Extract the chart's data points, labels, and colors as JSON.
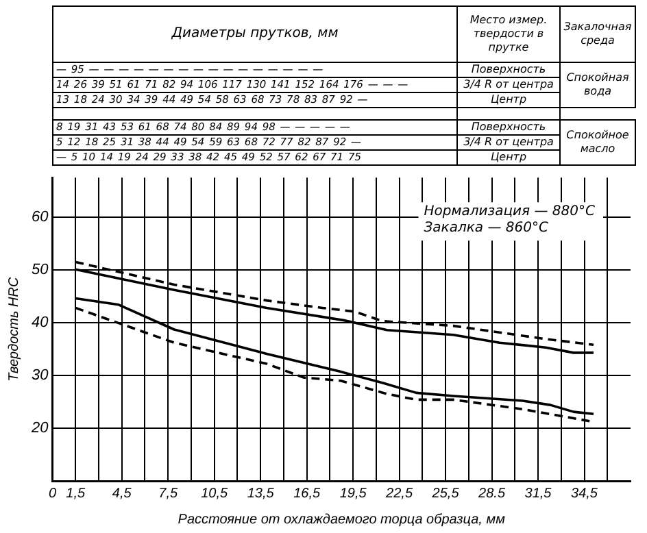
{
  "chart_data": {
    "type": "line",
    "xlabel": "Расстояние от охлаждаемого торца образца, мм",
    "ylabel": "Твердость HRC",
    "xlim": [
      0,
      37.5
    ],
    "ylim": [
      10,
      67.5
    ],
    "xticks": [
      0,
      {
        "value": 1.5,
        "label": "1,5"
      },
      {
        "value": 3,
        "label": null
      },
      {
        "value": 4.5,
        "label": "4,5"
      },
      {
        "value": 6,
        "label": null
      },
      {
        "value": 7.5,
        "label": "7,5"
      },
      {
        "value": 9,
        "label": null
      },
      {
        "value": 10.5,
        "label": "10,5"
      },
      {
        "value": 12,
        "label": null
      },
      {
        "value": 13.5,
        "label": "13,5"
      },
      {
        "value": 15,
        "label": null
      },
      {
        "value": 16.5,
        "label": "16,5"
      },
      {
        "value": 18,
        "label": null
      },
      {
        "value": 19.5,
        "label": "19,5"
      },
      {
        "value": 21,
        "label": null
      },
      {
        "value": 22.5,
        "label": "22,5"
      },
      {
        "value": 24,
        "label": null
      },
      {
        "value": 25.5,
        "label": "25,5"
      },
      {
        "value": 27,
        "label": null
      },
      {
        "value": 28.5,
        "label": "28.5"
      },
      {
        "value": 30,
        "label": null
      },
      {
        "value": 31.5,
        "label": "31,5"
      },
      {
        "value": 33,
        "label": null
      },
      {
        "value": 34.5,
        "label": "34,5"
      },
      {
        "value": 36,
        "label": null
      }
    ],
    "yticks": [
      20,
      30,
      40,
      50,
      60
    ],
    "grid": true,
    "series": [
      {
        "color": "#000000",
        "line_style": "solid",
        "x": [
          1.5,
          7.9,
          13.9,
          19.0,
          21.7,
          26.0,
          29.0,
          32.0,
          33.8,
          35.1
        ],
        "values": [
          50.1,
          46.2,
          42.8,
          40.4,
          38.6,
          37.7,
          36.2,
          35.3,
          34.3,
          34.3
        ]
      },
      {
        "color": "#000000",
        "line_style": "dashed",
        "x": [
          1.5,
          7.9,
          13.9,
          17.5,
          19.6,
          21.4,
          26.0,
          32.0,
          35.1
        ],
        "values": [
          51.5,
          47.2,
          44.2,
          42.8,
          42.1,
          40.3,
          39.4,
          36.9,
          35.8
        ]
      },
      {
        "color": "#000000",
        "line_style": "solid",
        "x": [
          1.5,
          4.3,
          7.9,
          13.9,
          18.7,
          21.4,
          23.6,
          26.0,
          30.5,
          32.3,
          33.8,
          35.1
        ],
        "values": [
          44.6,
          43.4,
          38.7,
          34.1,
          30.7,
          28.6,
          26.7,
          26.1,
          25.2,
          24.4,
          23.1,
          22.7
        ]
      },
      {
        "color": "#000000",
        "line_style": "dashed",
        "x": [
          1.5,
          7.9,
          13.9,
          16.3,
          18.7,
          21.7,
          23.6,
          26.0,
          30.5,
          35.1
        ],
        "values": [
          42.8,
          36.2,
          32.2,
          29.6,
          29.0,
          26.5,
          25.4,
          25.4,
          23.6,
          21.2
        ]
      }
    ],
    "annotations": [
      "Диаметры прутков, мм",
      "Место измер. твердости в прутке",
      "Закалочная среда",
      "— 95 — — — — — — — — — — — — — — — —",
      "14 26 39 51 61 71 82 94 106 117 130 141 152 164 176 — — —",
      "13 18 24 30 34 39 44 49 54 58 63 68 73 78 83 87 92 —",
      "Поверхность",
      "3/4 R от центра",
      "Центр",
      "Спокойная вода",
      "8 19 31 43 53 61 68 74 80 84 89 94 98 — — — — —",
      "5 12 18 25 31 38 44 49 54 59 63 68 72 77 82 87 92 —",
      "— 5 10 14 19 24 29 33 38 42 45 49 52 57 62 67 71 75",
      "Поверхность",
      "3/4 R от центра",
      "Центр",
      "Спокойное масло",
      "Нормализация — 880°C",
      "Закалка — 860°C"
    ]
  }
}
